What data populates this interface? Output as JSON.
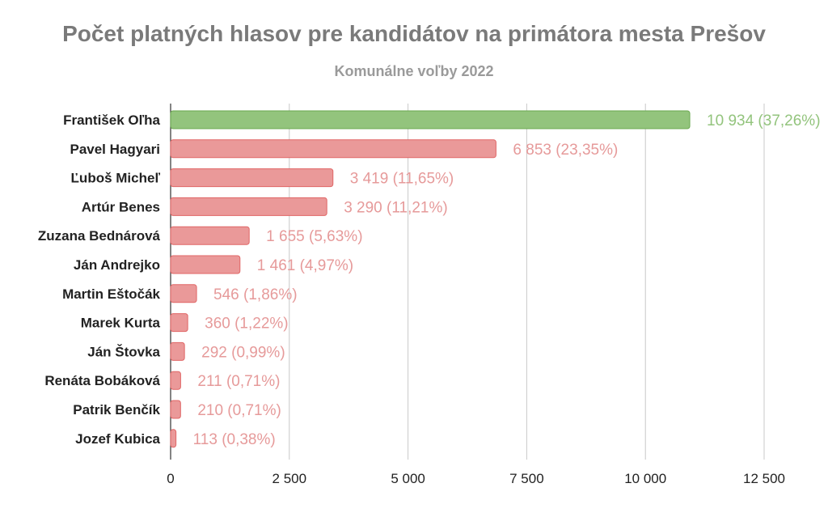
{
  "chart_data": {
    "type": "bar",
    "orientation": "horizontal",
    "title": "Počet platných hlasov pre kandidátov na primátora mesta Prešov",
    "subtitle": "Komunálne voľby 2022",
    "categories": [
      "František Oľha",
      "Pavel Hagyari",
      "Ľuboš Micheľ",
      "Artúr Benes",
      "Zuzana Bednárová",
      "Ján Andrejko",
      "Martin Eštočák",
      "Marek Kurta",
      "Ján Štovka",
      "Renáta Bobáková",
      "Patrik Benčík",
      "Jozef Kubica"
    ],
    "values": [
      10934,
      6853,
      3419,
      3290,
      1655,
      1461,
      546,
      360,
      292,
      211,
      210,
      113
    ],
    "data_labels": [
      "10 934 (37,26%)",
      "6 853 (23,35%)",
      "3 419 (11,65%)",
      "3 290 (11,21%)",
      "1 655 (5,63%)",
      "1 461 (4,97%)",
      "546 (1,86%)",
      "360 (1,22%)",
      "292 (0,99%)",
      "211 (0,71%)",
      "210 (0,71%)",
      "113 (0,38%)"
    ],
    "xlim": [
      0,
      12500
    ],
    "x_ticks": [
      0,
      2500,
      5000,
      7500,
      10000,
      12500
    ],
    "x_tick_labels": [
      "0",
      "2 500",
      "5 000",
      "7 500",
      "10 000",
      "12 500"
    ],
    "grid": true,
    "legend": "none",
    "colors": {
      "highlight_bar": "#93c47d",
      "highlight_border": "#6aa84f",
      "default_bar": "#ea9999",
      "default_border": "#e06666",
      "highlight_label": "#93c47d",
      "default_label": "#e69a9a",
      "grid": "#c8c8c8"
    }
  }
}
